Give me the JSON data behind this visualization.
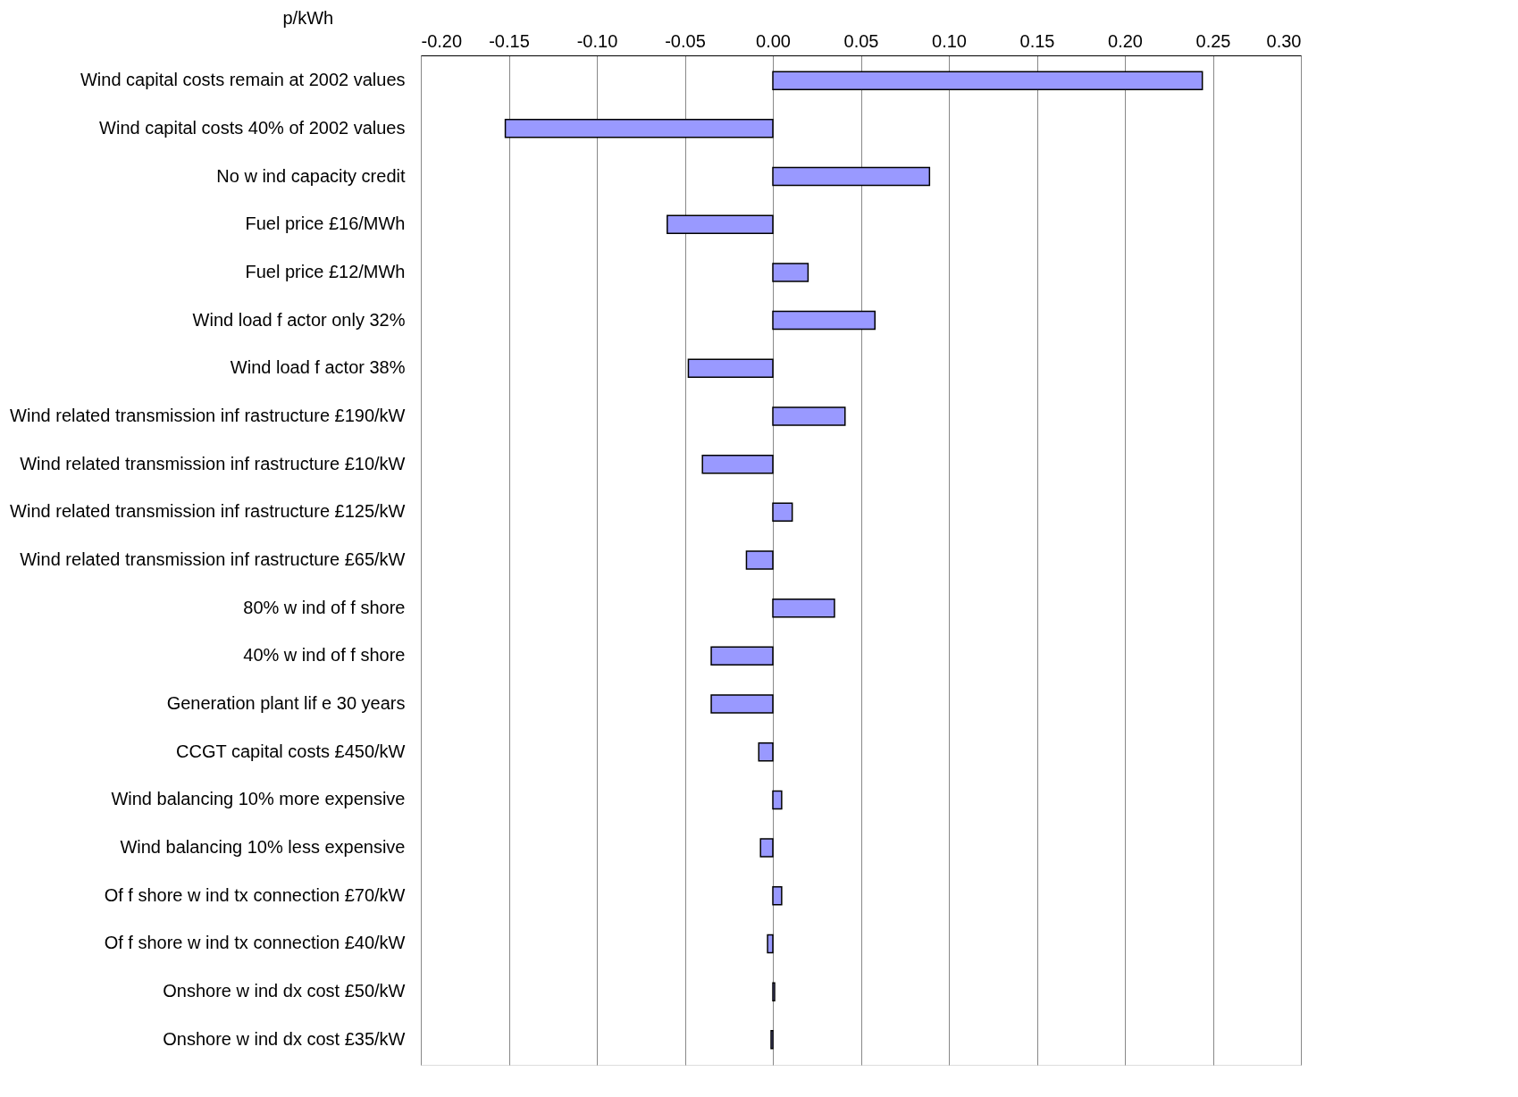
{
  "chart_data": {
    "type": "bar",
    "orientation": "horizontal",
    "xlabel": "p/kWh",
    "categories": [
      "Wind capital costs remain at 2002 values",
      "Wind capital costs 40% of 2002 values",
      "No w ind capacity credit",
      "Fuel price £16/MWh",
      "Fuel price £12/MWh",
      "Wind load f actor only 32%",
      "Wind load f actor 38%",
      "Wind related transmission inf rastructure £190/kW",
      "Wind related transmission inf rastructure £10/kW",
      "Wind related transmission inf rastructure £125/kW",
      "Wind related transmission inf rastructure £65/kW",
      "80% w ind of f shore",
      "40% w ind of f shore",
      "Generation plant lif e 30 years",
      "CCGT capital costs £450/kW",
      "Wind balancing 10% more expensive",
      "Wind balancing 10% less expensive",
      "Of f shore w ind tx connection £70/kW",
      "Of f shore w ind tx connection £40/kW",
      "Onshore w ind dx cost £50/kW",
      "Onshore w ind dx cost £35/kW"
    ],
    "values": [
      0.244,
      -0.152,
      0.089,
      -0.06,
      0.02,
      0.058,
      -0.048,
      0.041,
      -0.04,
      0.011,
      -0.015,
      0.035,
      -0.035,
      -0.035,
      -0.008,
      0.005,
      -0.007,
      0.005,
      -0.003,
      0.001,
      -0.001
    ],
    "color": "#9999ff",
    "xlim": [
      -0.2,
      0.3
    ],
    "xticks": [
      {
        "value": -0.2,
        "label": "-0.20"
      },
      {
        "value": -0.15,
        "label": "-0.15"
      },
      {
        "value": -0.1,
        "label": "-0.10"
      },
      {
        "value": -0.05,
        "label": "-0.05"
      },
      {
        "value": 0,
        "label": "0.00"
      },
      {
        "value": 0.05,
        "label": "0.05"
      },
      {
        "value": 0.1,
        "label": "0.10"
      },
      {
        "value": 0.15,
        "label": "0.15"
      },
      {
        "value": 0.2,
        "label": "0.20"
      },
      {
        "value": 0.25,
        "label": "0.25"
      },
      {
        "value": 0.3,
        "label": "0.30"
      }
    ],
    "grid": "x"
  }
}
